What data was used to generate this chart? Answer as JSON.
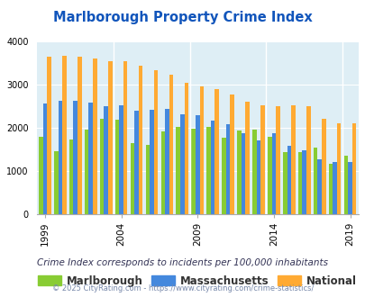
{
  "title": "Marlborough Property Crime Index",
  "years": [
    1999,
    2000,
    2001,
    2002,
    2003,
    2004,
    2005,
    2006,
    2007,
    2008,
    2009,
    2010,
    2011,
    2012,
    2013,
    2014,
    2015,
    2016,
    2017,
    2018,
    2019
  ],
  "marlborough": [
    1780,
    1450,
    1720,
    1950,
    2200,
    2190,
    1640,
    1610,
    1920,
    2020,
    1980,
    2010,
    1760,
    1930,
    1950,
    1780,
    1430,
    1440,
    1530,
    1160,
    1340
  ],
  "massachusetts": [
    2570,
    2630,
    2620,
    2590,
    2500,
    2510,
    2390,
    2410,
    2430,
    2320,
    2290,
    2160,
    2080,
    1870,
    1700,
    1870,
    1570,
    1470,
    1260,
    1210,
    1210
  ],
  "national": [
    3640,
    3660,
    3640,
    3610,
    3550,
    3540,
    3450,
    3330,
    3240,
    3050,
    2960,
    2900,
    2770,
    2610,
    2510,
    2490,
    2510,
    2500,
    2200,
    2110,
    2110
  ],
  "marlborough_color": "#88cc33",
  "massachusetts_color": "#4488dd",
  "national_color": "#ffaa33",
  "bg_color": "#deeef5",
  "title_color": "#1155bb",
  "ylim": [
    0,
    4000
  ],
  "yticks": [
    0,
    1000,
    2000,
    3000,
    4000
  ],
  "tick_years": [
    1999,
    2004,
    2009,
    2014,
    2019
  ],
  "sep_before": [
    2004,
    2009,
    2014,
    2019
  ],
  "subtitle": "Crime Index corresponds to incidents per 100,000 inhabitants",
  "footer": "© 2025 CityRating.com - https://www.cityrating.com/crime-statistics/",
  "subtitle_color": "#333355",
  "footer_color": "#7788aa",
  "legend_label_color": "#333333"
}
